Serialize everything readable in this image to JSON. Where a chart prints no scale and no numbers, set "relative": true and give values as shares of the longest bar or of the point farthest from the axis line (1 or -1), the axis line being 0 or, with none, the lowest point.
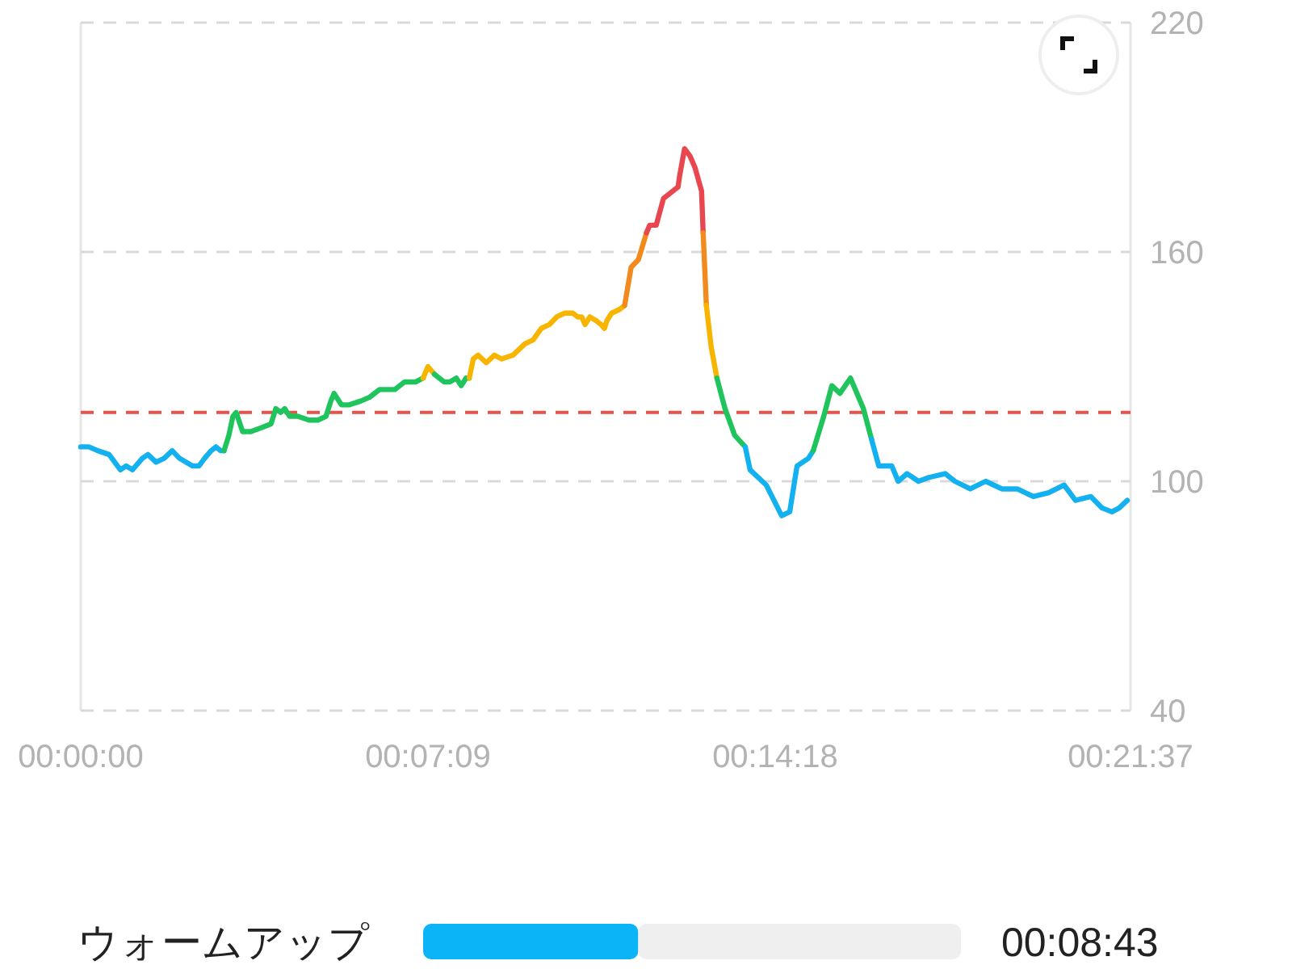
{
  "chart_data": [
    {
      "type": "line",
      "xlim": [
        0,
        1297
      ],
      "ylim": [
        40,
        220
      ],
      "xticks": [
        {
          "value": 0,
          "label": "00:00:00"
        },
        {
          "value": 429,
          "label": "00:07:09"
        },
        {
          "value": 858,
          "label": "00:14:18"
        },
        {
          "value": 1297,
          "label": "00:21:37"
        }
      ],
      "yticks": [
        40,
        100,
        160,
        220
      ],
      "grid": "y",
      "ref_lines": [
        {
          "axis": "y",
          "value": 118,
          "color": "#e5534b",
          "line_style": "dashed"
        }
      ],
      "series": [
        {
          "color": "#14b1f0",
          "x": [
            0,
            10,
            21,
            35,
            49,
            56,
            64,
            76,
            83,
            93,
            103,
            113,
            122,
            130,
            138,
            146,
            153,
            161,
            167,
            173,
            177
          ],
          "values": [
            109,
            109,
            108,
            107,
            103,
            104,
            103,
            106,
            107,
            105,
            106,
            108,
            106,
            105,
            104,
            104,
            106,
            108,
            109,
            108,
            108
          ]
        },
        {
          "color": "#1fc55c",
          "x": [
            177,
            183,
            188,
            192,
            200,
            210,
            223,
            235,
            241,
            247,
            252,
            258,
            268,
            282,
            293,
            303,
            309,
            313,
            322,
            332,
            346,
            357,
            369,
            379,
            388,
            400,
            414,
            423
          ],
          "values": [
            108,
            112,
            117,
            118,
            113,
            113,
            114,
            115,
            119,
            118,
            119,
            117,
            117,
            116,
            116,
            117,
            121,
            123,
            120,
            120,
            121,
            122,
            124,
            124,
            124,
            126,
            126,
            127
          ]
        },
        {
          "color": "#f7b500",
          "x": [
            423,
            429,
            437
          ],
          "values": [
            127,
            130,
            128
          ]
        },
        {
          "color": "#1fc55c",
          "x": [
            437,
            449,
            456,
            464,
            470,
            476,
            480
          ],
          "values": [
            128,
            126,
            126,
            127,
            125,
            127,
            127
          ]
        },
        {
          "color": "#f7b500",
          "x": [
            480,
            485,
            491,
            501,
            511,
            520,
            534,
            544,
            549,
            559,
            569,
            579,
            588,
            598,
            608,
            614,
            619,
            623,
            629,
            637,
            643,
            647,
            650,
            656,
            666,
            672
          ],
          "values": [
            127,
            132,
            133,
            131,
            133,
            132,
            133,
            135,
            136,
            137,
            140,
            141,
            143,
            144,
            144,
            143,
            143,
            141,
            143,
            142,
            141,
            140,
            142,
            144,
            145,
            146
          ]
        },
        {
          "color": "#f28a1d",
          "x": [
            672,
            680,
            689,
            699
          ],
          "values": [
            146,
            156,
            158,
            165
          ]
        },
        {
          "color": "#e8474f",
          "x": [
            699,
            703,
            711,
            720,
            738,
            740,
            746,
            753,
            759,
            767,
            769
          ],
          "values": [
            165,
            167,
            167,
            174,
            177,
            180,
            187,
            185,
            182,
            176,
            165
          ]
        },
        {
          "color": "#f28a1d",
          "x": [
            769,
            773
          ],
          "values": [
            165,
            146
          ]
        },
        {
          "color": "#f7b500",
          "x": [
            773,
            779,
            786
          ],
          "values": [
            146,
            135,
            127
          ]
        },
        {
          "color": "#1fc55c",
          "x": [
            786,
            796,
            808,
            821
          ],
          "values": [
            127,
            119,
            112,
            109
          ]
        },
        {
          "color": "#14b1f0",
          "x": [
            821,
            827,
            847,
            866,
            876,
            885,
            899,
            905
          ],
          "values": [
            109,
            103,
            99,
            91,
            92,
            104,
            106,
            108
          ]
        },
        {
          "color": "#1fc55c",
          "x": [
            905,
            918,
            928,
            938,
            951,
            967,
            977
          ],
          "values": [
            108,
            117,
            125,
            123,
            127,
            119,
            111
          ]
        },
        {
          "color": "#14b1f0",
          "x": [
            977,
            986,
            1002,
            1010,
            1021,
            1035,
            1048,
            1068,
            1080,
            1099,
            1118,
            1138,
            1157,
            1177,
            1196,
            1215,
            1229,
            1248,
            1262,
            1274,
            1283,
            1293
          ],
          "values": [
            111,
            104,
            104,
            100,
            102,
            100,
            101,
            102,
            100,
            98,
            100,
            98,
            98,
            96,
            97,
            99,
            95,
            96,
            93,
            92,
            93,
            95
          ]
        }
      ]
    },
    {
      "type": "bar",
      "orientation": "horizontal",
      "stacked": true,
      "relative": true,
      "categories": [
        "ウォームアップ"
      ],
      "series": [
        {
          "color": "#0ab4f6",
          "values": [
            0.4
          ]
        },
        {
          "color": "#efefef",
          "values": [
            0.6
          ]
        }
      ],
      "annotations": [
        "00:08:43"
      ]
    }
  ]
}
